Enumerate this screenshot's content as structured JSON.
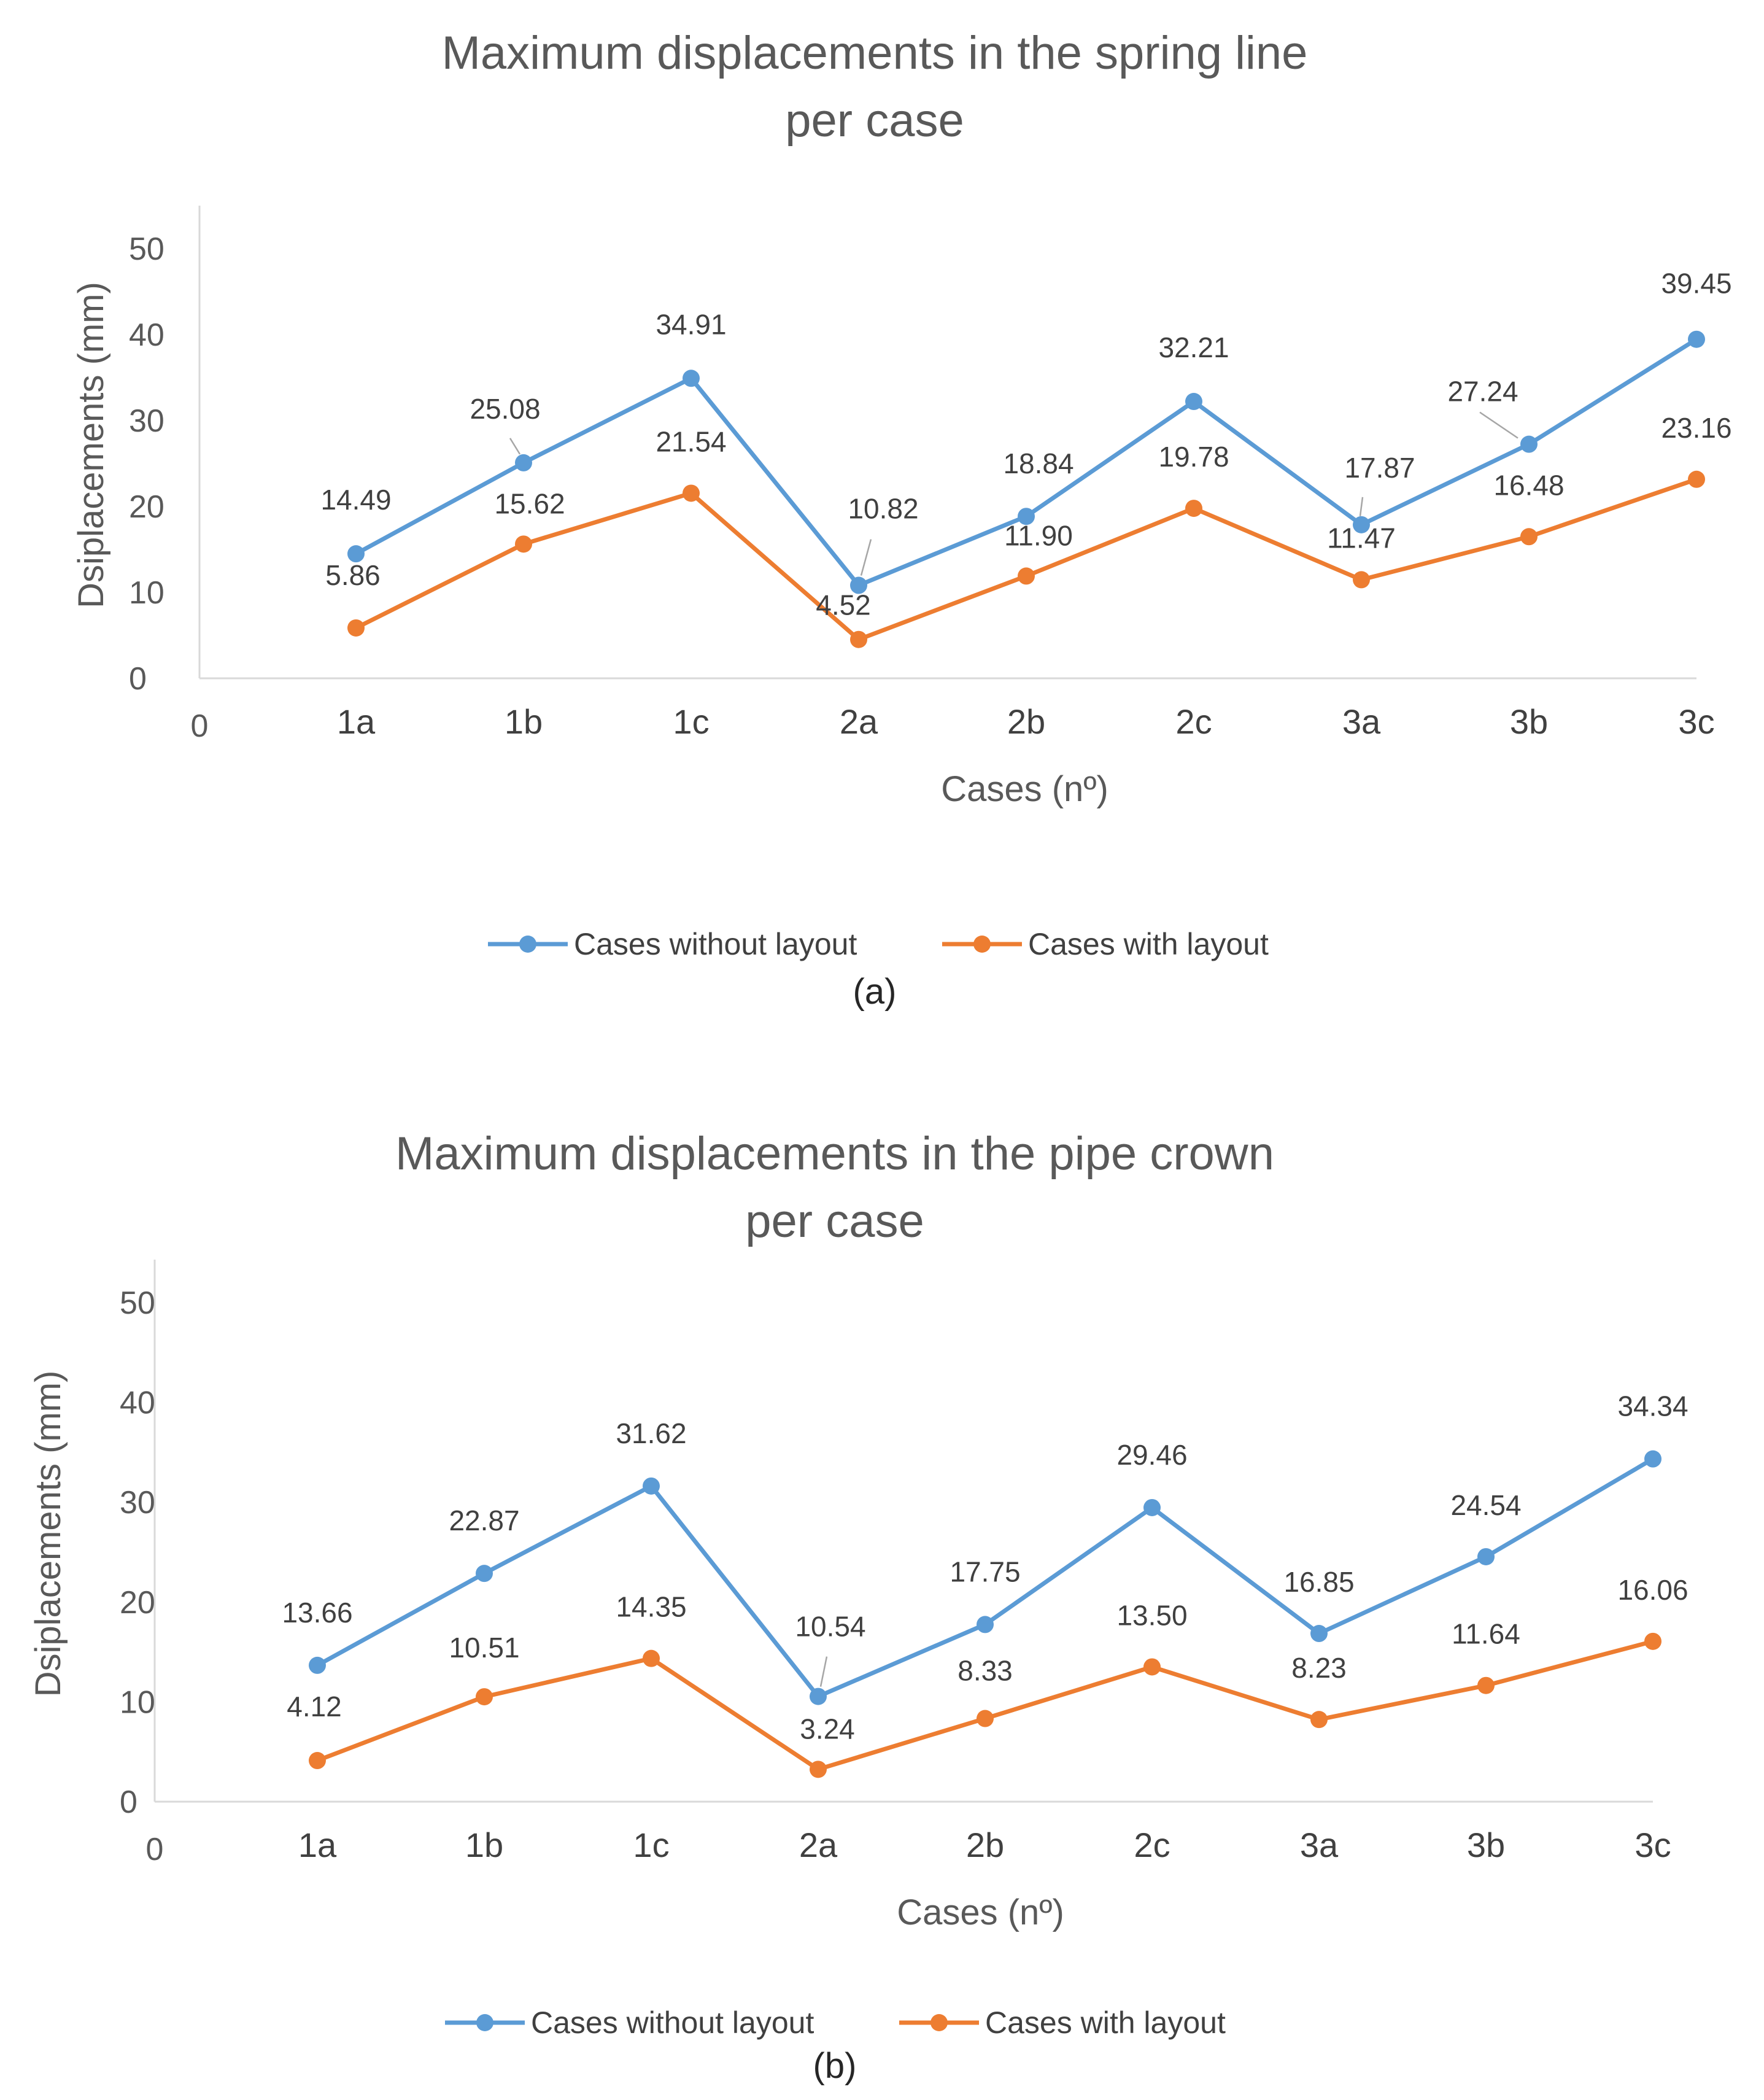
{
  "chart_data": [
    {
      "type": "line",
      "title_line1": "Maximum displacements in the spring line",
      "title_line2": "per case",
      "xlabel": "Cases (nº)",
      "ylabel": "Dsiplacements (mm)",
      "origin_label": "0",
      "ylim": [
        0,
        50
      ],
      "yticks": [
        "0",
        "10",
        "20",
        "30",
        "40",
        "50"
      ],
      "categories": [
        "1a",
        "1b",
        "1c",
        "2a",
        "2b",
        "2c",
        "3a",
        "3b",
        "3c"
      ],
      "series": [
        {
          "name": "Cases without layout",
          "color": "#5b9bd5",
          "values": [
            14.49,
            25.08,
            34.91,
            10.82,
            18.84,
            32.21,
            17.87,
            27.24,
            39.45
          ],
          "labels": [
            "14.49",
            "25.08",
            "34.91",
            "10.82",
            "18.84",
            "32.21",
            "17.87",
            "27.24",
            "39.45"
          ]
        },
        {
          "name": "Cases with layout",
          "color": "#ed7d31",
          "values": [
            5.86,
            15.62,
            21.54,
            4.52,
            11.9,
            19.78,
            11.47,
            16.48,
            23.16
          ],
          "labels": [
            "5.86",
            "15.62",
            "21.54",
            "4.52",
            "11.90",
            "19.78",
            "11.47",
            "16.48",
            "23.16"
          ]
        }
      ],
      "legend_position": "bottom",
      "caption": "(a)"
    },
    {
      "type": "line",
      "title_line1": "Maximum displacements in the pipe crown",
      "title_line2": "per case",
      "xlabel": "Cases (nº)",
      "ylabel": "Dsiplacements (mm)",
      "origin_label": "0",
      "ylim": [
        0,
        50
      ],
      "yticks": [
        "0",
        "10",
        "20",
        "30",
        "40",
        "50"
      ],
      "categories": [
        "1a",
        "1b",
        "1c",
        "2a",
        "2b",
        "2c",
        "3a",
        "3b",
        "3c"
      ],
      "series": [
        {
          "name": "Cases without layout",
          "color": "#5b9bd5",
          "values": [
            13.66,
            22.87,
            31.62,
            10.54,
            17.75,
            29.46,
            16.85,
            24.54,
            34.34
          ],
          "labels": [
            "13.66",
            "22.87",
            "31.62",
            "10.54",
            "17.75",
            "29.46",
            "16.85",
            "24.54",
            "34.34"
          ]
        },
        {
          "name": "Cases with layout",
          "color": "#ed7d31",
          "values": [
            4.12,
            10.51,
            14.35,
            3.24,
            8.33,
            13.5,
            8.23,
            11.64,
            16.06
          ],
          "labels": [
            "4.12",
            "10.51",
            "14.35",
            "3.24",
            "8.33",
            "13.50",
            "8.23",
            "11.64",
            "16.06"
          ]
        }
      ],
      "legend_position": "bottom",
      "caption": "(b)"
    }
  ]
}
